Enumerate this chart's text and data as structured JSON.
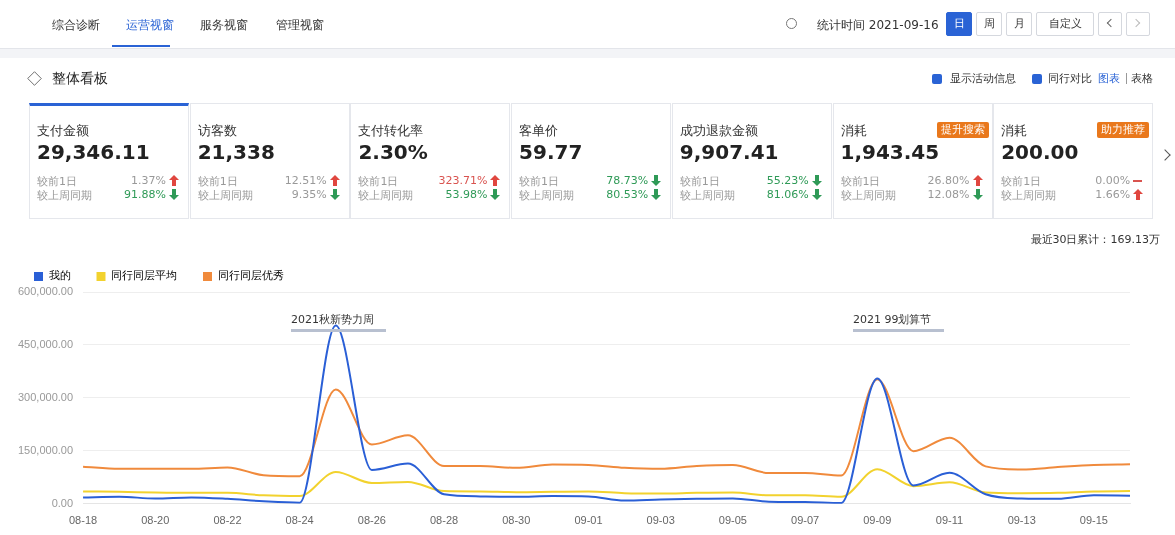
{
  "chart_data": [
    {
      "type": "other",
      "title": "整体看板",
      "annotations": [
        "综合诊断",
        "运营视窗",
        "服务视窗",
        "管理视窗",
        "统计时间 2021-09-16",
        "日",
        "周",
        "月",
        "自定义",
        "显示活动信息",
        "同行对比",
        "图表",
        "表格",
        "支付金额",
        "29,346.11",
        "较前1日",
        "1.37%",
        "较上周同期",
        "91.88%",
        "访客数",
        "21,338",
        "较前1日",
        "12.51%",
        "较上周同期",
        "9.35%",
        "支付转化率",
        "2.30%",
        "较前1日",
        "323.71%",
        "较上周同期",
        "53.98%",
        "客单价",
        "59.77",
        "较前1日",
        "78.73%",
        "较上周同期",
        "80.53%",
        "成功退款金额",
        "9,907.41",
        "较前1日",
        "55.23%",
        "较上周同期",
        "81.06%",
        "消耗",
        "1,943.45",
        "较前1日",
        "26.80%",
        "较上周同期",
        "12.08%",
        "消耗",
        "200.00",
        "较前1日",
        "0.00%",
        "较上周同期",
        "1.66%",
        "提升搜索",
        "助力推荐"
      ]
    },
    {
      "type": "line",
      "categories": [
        "08-18",
        null,
        "08-20",
        null,
        "08-22",
        null,
        "08-24",
        null,
        "08-26",
        null,
        "08-28",
        null,
        "08-30",
        null,
        "09-01",
        null,
        "09-03",
        null,
        "09-05",
        null,
        "09-07",
        null,
        "09-09",
        null,
        "09-11",
        null,
        "09-13",
        null,
        "09-15",
        null
      ],
      "series": [
        {
          "name": "我的",
          "color": "#2a5fd6",
          "values": [
            18000,
            20000,
            15000,
            18000,
            14000,
            7000,
            3000,
            505000,
            96000,
            114000,
            27000,
            21000,
            20000,
            22000,
            21000,
            9000,
            12000,
            14000,
            15000,
            6000,
            5000,
            2000,
            355000,
            52000,
            88000,
            27000,
            15000,
            14000,
            24000,
            23000
          ]
        },
        {
          "name": "同行同层平均",
          "color": "#f2d22e",
          "values": [
            35000,
            34000,
            32000,
            31000,
            31000,
            24000,
            22000,
            90000,
            59000,
            62000,
            36000,
            35000,
            33000,
            34000,
            35000,
            30000,
            29000,
            31000,
            32000,
            24000,
            24000,
            20000,
            98000,
            50000,
            61000,
            32000,
            30000,
            31000,
            35000,
            36000
          ]
        },
        {
          "name": "同行同层优秀",
          "color": "#f08a3c",
          "values": [
            105000,
            99000,
            99000,
            99000,
            103000,
            81000,
            78000,
            324000,
            168000,
            194000,
            107000,
            107000,
            102000,
            111000,
            110000,
            102000,
            99000,
            107000,
            110000,
            87000,
            87000,
            80000,
            353000,
            149000,
            187000,
            106000,
            97000,
            104000,
            110000,
            112000
          ]
        }
      ],
      "ylim": [
        0,
        600000
      ],
      "yticks": [
        {
          "value": 0,
          "label": "0.00"
        },
        {
          "value": 150000,
          "label": "150,000.00"
        },
        {
          "value": 300000,
          "label": "300,000.00"
        },
        {
          "value": 450000,
          "label": "450,000.00"
        },
        {
          "value": 600000,
          "label": "600,000.00"
        }
      ],
      "grid": "y",
      "legend": "top left",
      "marker": "none",
      "line_style": "solid",
      "annotations": [
        "最近30日累计：169.13万",
        "2021秋新势力周",
        "2021 99划算节"
      ]
    }
  ]
}
